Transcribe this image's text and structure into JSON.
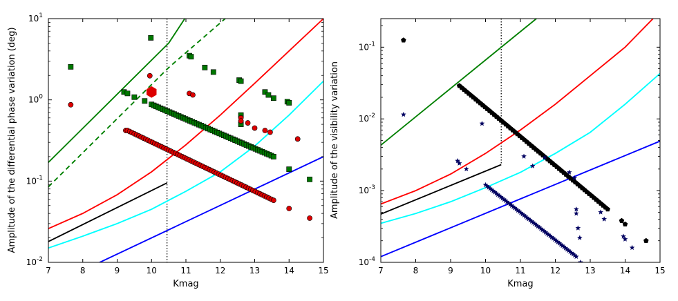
{
  "chart_data": [
    {
      "type": "scatter",
      "ylabel": "Amplitude of the differential phase variation (deg)",
      "xlabel": "Kmag",
      "xlim": [
        7,
        15
      ],
      "ylim": [
        0.01,
        10
      ],
      "yscale": "log",
      "x_ticks": [
        "7",
        "8",
        "9",
        "10",
        "11",
        "12",
        "13",
        "14",
        "15"
      ],
      "y_ticks": [
        {
          "base": "10",
          "exp": "-2",
          "value": 0.01
        },
        {
          "base": "10",
          "exp": "-1",
          "value": 0.1
        },
        {
          "base": "10",
          "exp": "0",
          "value": 1
        },
        {
          "base": "10",
          "exp": "1",
          "value": 10
        }
      ],
      "vline": {
        "x": 10.45,
        "style": "dotted",
        "color": "#000000"
      },
      "lines": [
        {
          "name": "green-solid",
          "color": "#008000",
          "dash": false,
          "points": [
            [
              7,
              0.17
            ],
            [
              10.5,
              5.0
            ],
            [
              11.0,
              10.5
            ]
          ]
        },
        {
          "name": "green-dashed",
          "color": "#008000",
          "dash": true,
          "points": [
            [
              7,
              0.085
            ],
            [
              10.5,
              2.5
            ],
            [
              12.2,
              10.5
            ]
          ]
        },
        {
          "name": "red",
          "color": "#ff0000",
          "dash": false,
          "points": [
            [
              7,
              0.026
            ],
            [
              8,
              0.04
            ],
            [
              9,
              0.068
            ],
            [
              10,
              0.13
            ],
            [
              11,
              0.28
            ],
            [
              12,
              0.65
            ],
            [
              13,
              1.6
            ],
            [
              14,
              4.0
            ],
            [
              15,
              10.0
            ]
          ]
        },
        {
          "name": "black",
          "color": "#000000",
          "dash": false,
          "points": [
            [
              7,
              0.018
            ],
            [
              10.45,
              0.095
            ]
          ]
        },
        {
          "name": "cyan",
          "color": "#00ffff",
          "dash": false,
          "points": [
            [
              7,
              0.015
            ],
            [
              8,
              0.021
            ],
            [
              9,
              0.03
            ],
            [
              10,
              0.045
            ],
            [
              11,
              0.075
            ],
            [
              12,
              0.13
            ],
            [
              13,
              0.27
            ],
            [
              14,
              0.65
            ],
            [
              15,
              1.7
            ]
          ]
        },
        {
          "name": "blue",
          "color": "#0000ff",
          "dash": false,
          "points": [
            [
              8.45,
              0.0098
            ],
            [
              15,
              0.2
            ]
          ]
        }
      ],
      "series": [
        {
          "name": "green-squares",
          "marker": "square",
          "color": "#007700",
          "edge": "#000000",
          "points": [
            [
              7.65,
              2.55
            ],
            [
              9.2,
              1.25
            ],
            [
              9.3,
              1.2
            ],
            [
              9.5,
              1.08
            ],
            [
              9.8,
              0.97
            ],
            [
              9.98,
              5.8
            ],
            [
              11.1,
              3.5
            ],
            [
              11.15,
              3.4
            ],
            [
              11.55,
              2.5
            ],
            [
              11.8,
              2.2
            ],
            [
              12.55,
              1.75
            ],
            [
              12.6,
              1.7
            ],
            [
              12.6,
              0.65
            ],
            [
              12.6,
              0.5
            ],
            [
              13.3,
              1.25
            ],
            [
              13.4,
              1.15
            ],
            [
              13.55,
              1.05
            ],
            [
              13.95,
              0.95
            ],
            [
              14.0,
              0.92
            ],
            [
              14.0,
              0.14
            ],
            [
              14.6,
              0.105
            ]
          ]
        },
        {
          "name": "red-circles",
          "marker": "circle",
          "color": "#dd0000",
          "edge": "#000000",
          "points": [
            [
              7.65,
              0.87
            ],
            [
              9.25,
              0.42
            ],
            [
              9.95,
              1.98
            ],
            [
              11.1,
              1.2
            ],
            [
              11.2,
              1.15
            ],
            [
              12.6,
              0.6
            ],
            [
              12.6,
              0.55
            ],
            [
              12.8,
              0.52
            ],
            [
              13.0,
              0.45
            ],
            [
              13.3,
              0.42
            ],
            [
              13.45,
              0.4
            ],
            [
              14.25,
              0.33
            ],
            [
              14.0,
              0.046
            ],
            [
              14.6,
              0.035
            ]
          ]
        },
        {
          "name": "red-hexagon",
          "marker": "hexagon",
          "color": "#dd0000",
          "edge": "#dd0000",
          "size": 8,
          "points": [
            [
              10.0,
              1.25
            ]
          ]
        },
        {
          "name": "green-line-run",
          "marker": "square",
          "color": "#007700",
          "edge": "#000000",
          "run": {
            "x0": 10.0,
            "y0": 0.88,
            "x1": 13.55,
            "y1": 0.2,
            "n": 55
          }
        },
        {
          "name": "red-line-run",
          "marker": "circle",
          "color": "#dd0000",
          "edge": "#000000",
          "run": {
            "x0": 9.3,
            "y0": 0.42,
            "x1": 13.55,
            "y1": 0.058,
            "n": 65
          }
        }
      ]
    },
    {
      "type": "scatter",
      "ylabel": "Amplitude of the visibility variation",
      "xlabel": "Kmag",
      "xlim": [
        7,
        15
      ],
      "ylim": [
        0.0001,
        0.25
      ],
      "yscale": "log",
      "x_ticks": [
        "7",
        "8",
        "9",
        "10",
        "11",
        "12",
        "13",
        "14",
        "15"
      ],
      "y_ticks": [
        {
          "base": "10",
          "exp": "-4",
          "value": 0.0001
        },
        {
          "base": "10",
          "exp": "-3",
          "value": 0.001
        },
        {
          "base": "10",
          "exp": "-2",
          "value": 0.01
        },
        {
          "base": "10",
          "exp": "-1",
          "value": 0.1
        }
      ],
      "vline": {
        "x": 10.45,
        "style": "dotted",
        "color": "#000000",
        "from": 0.0023
      },
      "lines": [
        {
          "name": "green",
          "color": "#008000",
          "dash": false,
          "points": [
            [
              7,
              0.0043
            ],
            [
              11.5,
              0.26
            ]
          ]
        },
        {
          "name": "red",
          "color": "#ff0000",
          "dash": false,
          "points": [
            [
              7,
              0.00065
            ],
            [
              8,
              0.001
            ],
            [
              9,
              0.0017
            ],
            [
              10,
              0.0033
            ],
            [
              11,
              0.007
            ],
            [
              12,
              0.016
            ],
            [
              13,
              0.04
            ],
            [
              14,
              0.1
            ],
            [
              14.8,
              0.25
            ]
          ]
        },
        {
          "name": "black",
          "color": "#000000",
          "dash": false,
          "points": [
            [
              7,
              0.00047
            ],
            [
              10.45,
              0.0023
            ]
          ]
        },
        {
          "name": "cyan",
          "color": "#00ffff",
          "dash": false,
          "points": [
            [
              7,
              0.00035
            ],
            [
              8,
              0.00048
            ],
            [
              9,
              0.0007
            ],
            [
              10,
              0.0011
            ],
            [
              11,
              0.0018
            ],
            [
              12,
              0.0033
            ],
            [
              13,
              0.0065
            ],
            [
              14,
              0.016
            ],
            [
              15,
              0.043
            ]
          ]
        },
        {
          "name": "blue",
          "color": "#0000ff",
          "dash": false,
          "points": [
            [
              7,
              0.00012
            ],
            [
              15,
              0.0049
            ]
          ]
        }
      ],
      "series": [
        {
          "name": "black-pentagons",
          "marker": "pentagon",
          "color": "#000000",
          "edge": "#000000",
          "points": [
            [
              7.65,
              0.125
            ],
            [
              13.9,
              0.00038
            ],
            [
              14.0,
              0.00034
            ],
            [
              14.6,
              0.0002
            ]
          ],
          "run": {
            "x0": 9.25,
            "y0": 0.029,
            "x1": 13.5,
            "y1": 0.00055,
            "n": 65
          }
        },
        {
          "name": "navy-stars",
          "marker": "star",
          "color": "#000060",
          "edge": "#000060",
          "points": [
            [
              7.65,
              0.0115
            ],
            [
              9.2,
              0.0026
            ],
            [
              9.25,
              0.0024
            ],
            [
              9.45,
              0.002
            ],
            [
              9.9,
              0.0086
            ],
            [
              11.1,
              0.003
            ],
            [
              11.35,
              0.0022
            ],
            [
              11.7,
              0.0029
            ],
            [
              12.4,
              0.0018
            ],
            [
              12.55,
              0.0015
            ],
            [
              12.6,
              0.00055
            ],
            [
              12.6,
              0.00048
            ],
            [
              12.65,
              0.0003
            ],
            [
              12.7,
              0.00022
            ],
            [
              13.3,
              0.0005
            ],
            [
              13.4,
              0.0004
            ],
            [
              13.95,
              0.00023
            ],
            [
              14.0,
              0.00021
            ],
            [
              14.2,
              0.00016
            ],
            [
              12.72,
              0.0001
            ]
          ],
          "run": {
            "x0": 10.0,
            "y0": 0.0012,
            "x1": 12.6,
            "y1": 0.00012,
            "n": 60
          }
        }
      ]
    }
  ]
}
